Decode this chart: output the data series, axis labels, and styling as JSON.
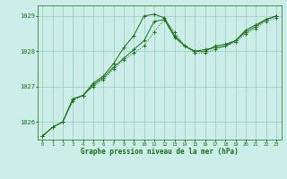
{
  "x": [
    0,
    1,
    2,
    3,
    4,
    5,
    6,
    7,
    8,
    9,
    10,
    11,
    12,
    13,
    14,
    15,
    16,
    17,
    18,
    19,
    20,
    21,
    22,
    23
  ],
  "line1": [
    1025.6,
    1025.85,
    1026.0,
    1026.65,
    1026.75,
    1027.05,
    1027.25,
    1027.55,
    1027.8,
    1028.05,
    1028.3,
    1028.85,
    1028.9,
    1028.4,
    1028.15,
    1028.0,
    1028.0,
    1028.15,
    1028.2,
    1028.3,
    1028.55,
    1028.7,
    1028.9,
    1029.0
  ],
  "line2": [
    1025.6,
    1025.85,
    1026.0,
    1026.65,
    1026.75,
    1027.1,
    1027.3,
    1027.65,
    1028.1,
    1028.45,
    1029.0,
    1029.05,
    1028.95,
    1028.45,
    1028.15,
    1028.0,
    1028.05,
    1028.1,
    1028.15,
    1028.3,
    1028.6,
    1028.75,
    1028.9,
    1029.0
  ],
  "line3": [
    1025.6,
    1025.85,
    1026.0,
    1026.6,
    1026.75,
    1027.0,
    1027.2,
    1027.5,
    1027.75,
    1027.95,
    1028.15,
    1028.55,
    1028.9,
    1028.55,
    1028.15,
    1027.95,
    1027.95,
    1028.05,
    1028.15,
    1028.25,
    1028.5,
    1028.65,
    1028.85,
    1028.95
  ],
  "bg_color": "#cceee8",
  "grid_color": "#99ccbb",
  "line_color": "#1a6b1a",
  "ylim": [
    1025.5,
    1029.3
  ],
  "yticks": [
    1026,
    1027,
    1028,
    1029
  ],
  "xticks": [
    0,
    1,
    2,
    3,
    4,
    5,
    6,
    7,
    8,
    9,
    10,
    11,
    12,
    13,
    14,
    15,
    16,
    17,
    18,
    19,
    20,
    21,
    22,
    23
  ],
  "xlabel": "Graphe pression niveau de la mer (hPa)",
  "xlabel_color": "#1a6b1a",
  "tick_color": "#1a6b1a",
  "marker": "+",
  "marker_size": 3,
  "lw": 0.7
}
